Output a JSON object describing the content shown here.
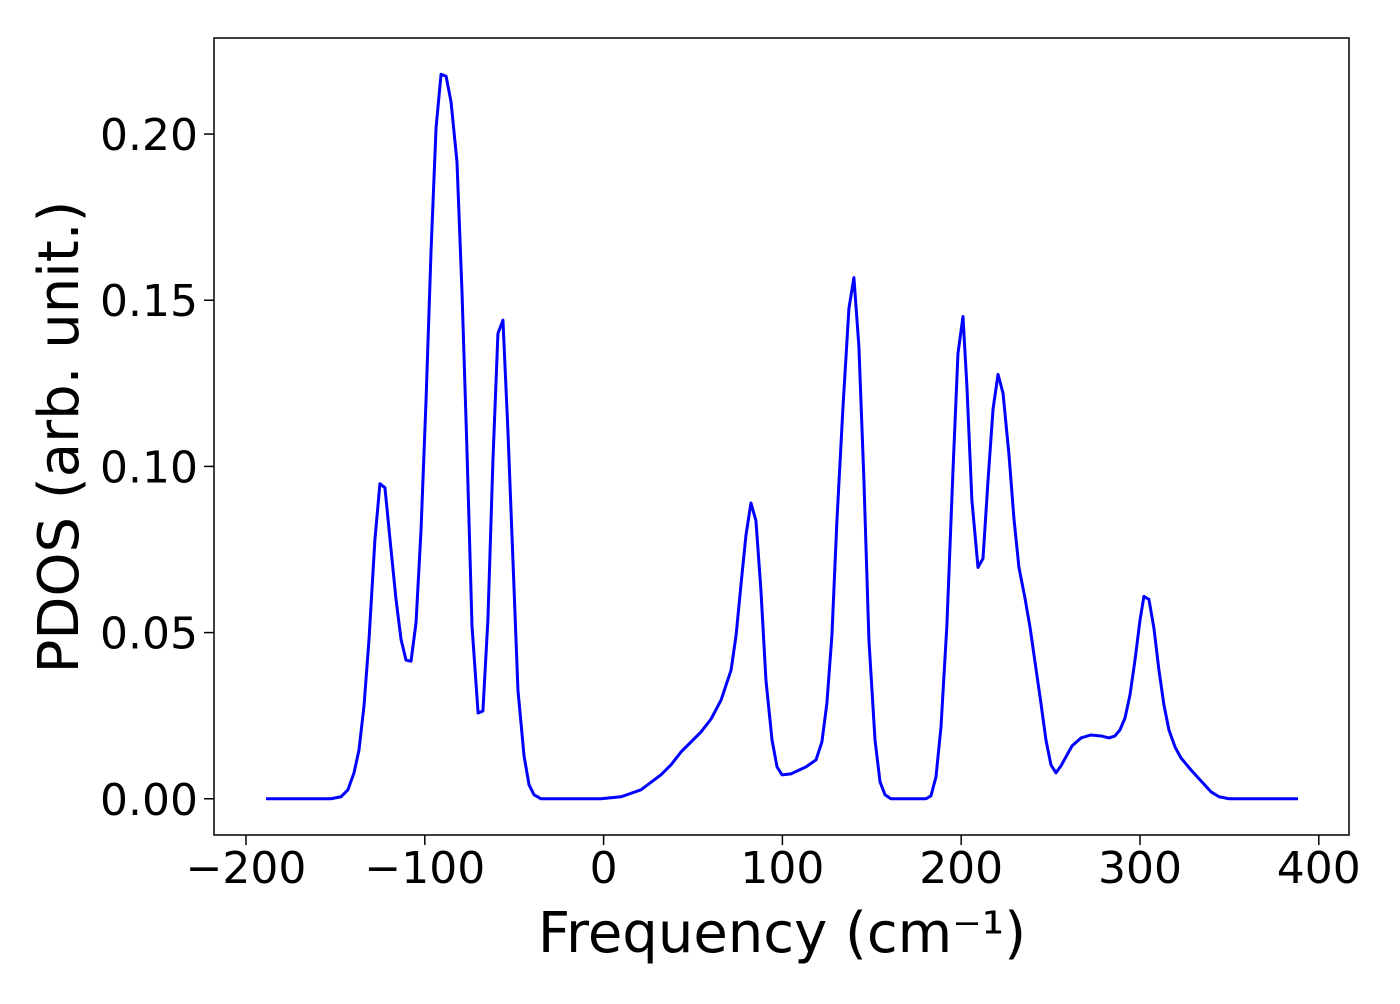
{
  "chart_data": {
    "type": "line",
    "x_label": "Frequency (cm⁻¹)",
    "y_label": "PDOS (arb. unit.)",
    "xlim": [
      -217.9,
      416.9
    ],
    "ylim": [
      -0.0109,
      0.2289
    ],
    "xticks": [
      {
        "value": -200,
        "label": "−200"
      },
      {
        "value": -100,
        "label": "−100"
      },
      0,
      100,
      200,
      300,
      400
    ],
    "yticks": [
      {
        "value": 0,
        "label": "0.00"
      },
      {
        "value": 0.05,
        "label": "0.05"
      },
      {
        "value": 0.1,
        "label": "0.10"
      },
      {
        "value": 0.15,
        "label": "0.15"
      },
      {
        "value": 0.2,
        "label": "0.20"
      }
    ],
    "grid": false,
    "x": [
      -188.8,
      -152.5,
      -146.9,
      -143,
      -139.6,
      -136.8,
      -134,
      -131.2,
      -127.9,
      -125.1,
      -122.3,
      -118.9,
      -116.1,
      -113.3,
      -110.5,
      -107.7,
      -104.9,
      -102.1,
      -99.3,
      -96.5,
      -93.7,
      -90.9,
      -88.1,
      -85.3,
      -82,
      -79.2,
      -76.4,
      -73.6,
      -70.2,
      -67.5,
      -64.7,
      -61.9,
      -59.1,
      -56.3,
      -53.5,
      -50.7,
      -47.9,
      -44.5,
      -41.7,
      -38.9,
      -35,
      -1.5,
      9.7,
      20.9,
      32.1,
      37.7,
      43.3,
      54.5,
      60.1,
      65.7,
      71.3,
      74.1,
      76.8,
      79.6,
      82.4,
      85.2,
      88,
      90.8,
      94.2,
      97,
      99.8,
      104.8,
      113.2,
      118.8,
      122.1,
      124.9,
      127.7,
      130.5,
      133.9,
      137.2,
      140,
      142.8,
      145.6,
      148.4,
      151.8,
      154.6,
      157.4,
      160.7,
      180.3,
      183.1,
      185.9,
      188.7,
      192,
      195.4,
      198.2,
      201,
      203.2,
      206,
      209.4,
      212.2,
      215,
      217.8,
      220.6,
      223.4,
      226.7,
      229.5,
      232.3,
      235.7,
      238.5,
      241.3,
      244.6,
      247.4,
      250.2,
      253,
      255.8,
      259.2,
      262,
      267,
      272.6,
      278.2,
      282.7,
      286,
      288.8,
      291.6,
      294.4,
      297.2,
      300,
      302.2,
      305,
      307.8,
      310.6,
      313.4,
      316.2,
      319.6,
      322.9,
      328.5,
      334.1,
      339.7,
      344.2,
      349.8,
      388.4
    ],
    "series": [
      {
        "name": "PDOS",
        "color": "#0000ff",
        "values": [
          0,
          0,
          0.0006,
          0.0027,
          0.0078,
          0.0147,
          0.028,
          0.048,
          0.078,
          0.0948,
          0.0936,
          0.075,
          0.06,
          0.048,
          0.0417,
          0.0414,
          0.053,
          0.081,
          0.12,
          0.165,
          0.202,
          0.218,
          0.2174,
          0.2096,
          0.1916,
          0.1526,
          0.1046,
          0.052,
          0.0258,
          0.0264,
          0.054,
          0.1017,
          0.14,
          0.144,
          0.1106,
          0.0717,
          0.0327,
          0.0129,
          0.0042,
          0.0012,
          0,
          0,
          0.0006,
          0.0027,
          0.0072,
          0.0102,
          0.0141,
          0.0201,
          0.024,
          0.0297,
          0.0387,
          0.0492,
          0.0642,
          0.0792,
          0.089,
          0.0837,
          0.0627,
          0.0357,
          0.0177,
          0.0096,
          0.0072,
          0.0075,
          0.0096,
          0.0117,
          0.0171,
          0.0288,
          0.0492,
          0.0837,
          0.118,
          0.1475,
          0.1568,
          0.136,
          0.0957,
          0.0477,
          0.0177,
          0.0051,
          0.0012,
          0,
          0,
          0.0009,
          0.0066,
          0.0216,
          0.0522,
          0.0987,
          0.134,
          0.1451,
          0.1241,
          0.0897,
          0.0696,
          0.0723,
          0.0957,
          0.1172,
          0.1277,
          0.122,
          0.1037,
          0.0843,
          0.0696,
          0.0603,
          0.0516,
          0.0411,
          0.0288,
          0.0177,
          0.0102,
          0.0078,
          0.0099,
          0.0132,
          0.0159,
          0.0183,
          0.0192,
          0.0189,
          0.0183,
          0.0189,
          0.0207,
          0.0243,
          0.0312,
          0.0417,
          0.0537,
          0.0609,
          0.06,
          0.0513,
          0.0387,
          0.0282,
          0.0207,
          0.0156,
          0.0123,
          0.0087,
          0.0054,
          0.0021,
          0.0006,
          0,
          0
        ]
      }
    ]
  }
}
